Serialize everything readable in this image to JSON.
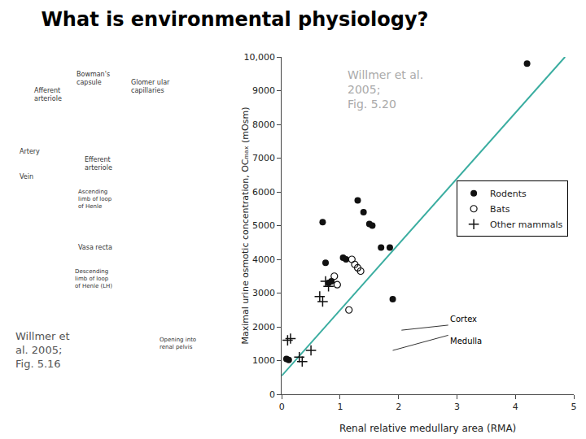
{
  "chart_data": {
    "type": "scatter",
    "title": "What is environmental physiology?",
    "xlabel": "Renal relative medullary area (RMA)",
    "ylabel": "Maximal urine osmotic concentration, OCₘₐₓ (mOsm)",
    "xlim": [
      0,
      5
    ],
    "ylim": [
      0,
      10000
    ],
    "xticks": [
      0,
      1,
      2,
      3,
      4,
      5
    ],
    "yticks": [
      0,
      1000,
      2000,
      3000,
      4000,
      5000,
      6000,
      7000,
      8000,
      9000,
      {
        "value": 10000,
        "label": "10,000"
      }
    ],
    "grid": false,
    "legend": "right",
    "series": [
      {
        "name": "Rodents",
        "color": "#111111",
        "marker": "circle",
        "x": [
          0.08,
          0.12,
          0.7,
          0.75,
          0.8,
          0.85,
          1.05,
          1.1,
          1.3,
          1.4,
          1.5,
          1.55,
          1.7,
          1.85,
          1.9,
          4.2
        ],
        "values": [
          1050,
          1020,
          5100,
          3900,
          3300,
          3350,
          4050,
          4000,
          5750,
          5400,
          5050,
          5000,
          4350,
          4350,
          2820,
          9800
        ]
      },
      {
        "name": "Bats",
        "color": "#111111",
        "marker": "circle-open",
        "x": [
          0.9,
          0.95,
          1.2,
          1.25,
          1.3,
          1.35,
          1.15
        ],
        "values": [
          3500,
          3250,
          4000,
          3850,
          3750,
          3650,
          2500
        ]
      },
      {
        "name": "Other mammals",
        "color": "#111111",
        "marker": "cross-thin",
        "x": [
          0.1,
          0.15,
          0.3,
          0.35,
          0.5,
          0.65,
          0.7,
          0.75,
          0.8
        ],
        "values": [
          1600,
          1650,
          1100,
          970,
          1300,
          2900,
          2750,
          3350,
          3200
        ]
      },
      {
        "type": "line",
        "color": "#3aada0",
        "x": [
          0.0,
          4.85
        ],
        "values": [
          550,
          10000
        ]
      }
    ],
    "annotations": [
      {
        "text": "Willmer et al.\n2005;\nFig. 5.20",
        "color": "#aaaaaa"
      },
      {
        "text": "Cortex",
        "color": "#000000"
      },
      {
        "text": "Medulla",
        "color": "#000000"
      },
      {
        "text": "Willmer et\nal. 2005;\nFig. 5.16",
        "color": "#555555"
      },
      {
        "text": "Bowman's\ncapsule",
        "color": "#333333"
      },
      {
        "text": "Glomer ular\ncapillaries",
        "color": "#333333"
      },
      {
        "text": "Afferent\narteriole",
        "color": "#333333"
      },
      {
        "text": "Artery",
        "color": "#333333"
      },
      {
        "text": "Vein",
        "color": "#333333"
      },
      {
        "text": "Efferent\narteriole",
        "color": "#333333"
      },
      {
        "text": "Ascending\nlimb of loop\nof Henle",
        "color": "#333333"
      },
      {
        "text": "Vasa recta",
        "color": "#333333"
      },
      {
        "text": "Descending\nlimb of loop\nof Henle (LH)",
        "color": "#333333"
      },
      {
        "text": "Opening into\nrenal pelvis",
        "color": "#333333"
      }
    ]
  }
}
